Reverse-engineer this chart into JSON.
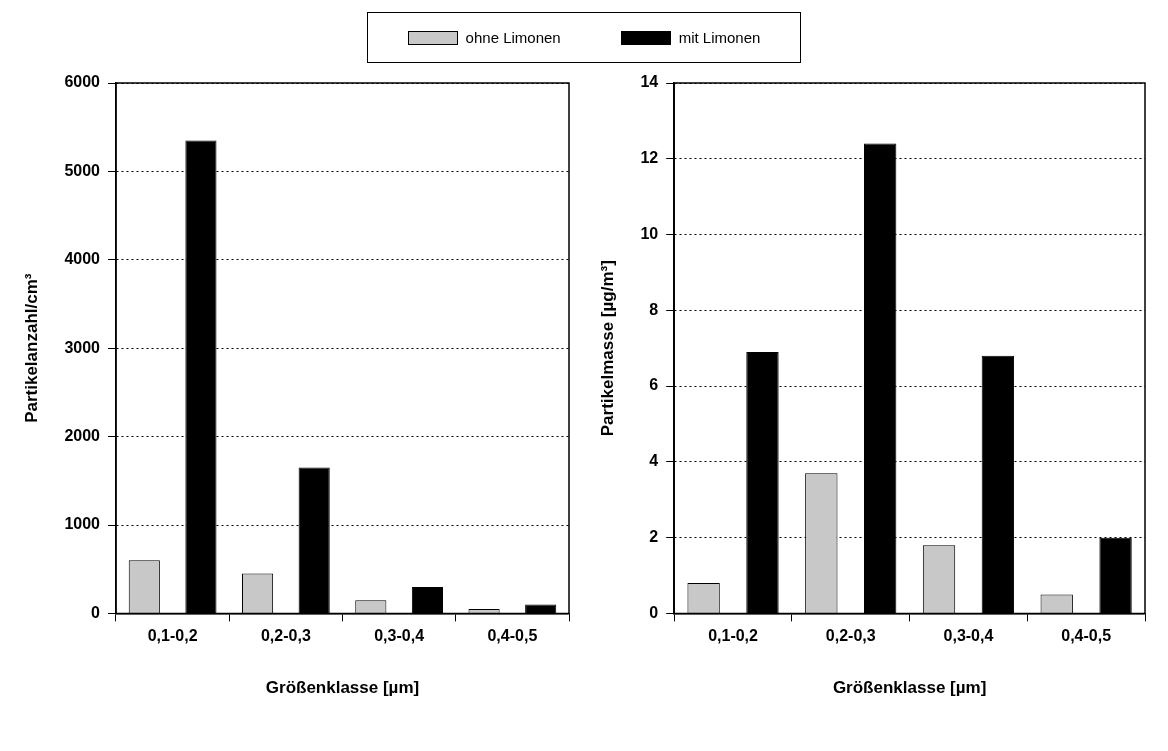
{
  "chart_data": [
    {
      "type": "bar",
      "xlabel": "Größenklasse [µm]",
      "ylabel": "Partikelanzahl/cm³",
      "categories": [
        "0,1-0,2",
        "0,2-0,3",
        "0,3-0,4",
        "0,4-0,5"
      ],
      "series": [
        {
          "name": "ohne Limonen",
          "color": "#c8c8c8",
          "values": [
            600,
            450,
            150,
            50
          ]
        },
        {
          "name": "mit Limonen",
          "color": "#000000",
          "values": [
            5350,
            1650,
            300,
            100
          ]
        }
      ],
      "ylim": [
        0,
        6000
      ],
      "yticks": [
        0,
        1000,
        2000,
        3000,
        4000,
        5000,
        6000
      ],
      "grid": "y",
      "legend": "top"
    },
    {
      "type": "bar",
      "xlabel": "Größenklasse [µm]",
      "ylabel": "Partikelmasse [µg/m³]",
      "categories": [
        "0,1-0,2",
        "0,2-0,3",
        "0,3-0,4",
        "0,4-0,5"
      ],
      "series": [
        {
          "color": "#c8c8c8",
          "values": [
            0.8,
            3.7,
            1.8,
            0.5
          ]
        },
        {
          "color": "#000000",
          "values": [
            6.9,
            12.4,
            6.8,
            2.0
          ]
        }
      ],
      "ylim": [
        0,
        14
      ],
      "yticks": [
        0,
        2,
        4,
        6,
        8,
        10,
        12,
        14
      ],
      "grid": "y"
    }
  ]
}
